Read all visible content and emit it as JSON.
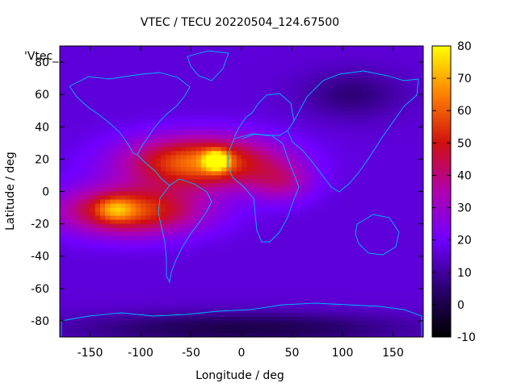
{
  "chart_data": {
    "type": "heatmap",
    "title": "VTEC / TECU 20220504_124.67500",
    "xlabel": "Longitude / deg",
    "ylabel": "Latitude / deg",
    "overlay_label": "'Vtec_",
    "xlim": [
      -180,
      180
    ],
    "ylim": [
      -90,
      90
    ],
    "x_ticks": [
      -150,
      -100,
      -50,
      0,
      50,
      100,
      150
    ],
    "y_ticks": [
      -80,
      -60,
      -40,
      -20,
      0,
      20,
      40,
      60,
      80
    ],
    "colorbar": {
      "range": [
        -10,
        80
      ],
      "ticks": [
        -10,
        0,
        10,
        20,
        30,
        40,
        50,
        60,
        70,
        80
      ],
      "colors": [
        "#000000",
        "#2a0070",
        "#7000ff",
        "#b000b0",
        "#d01010",
        "#ff8000",
        "#ffff00"
      ]
    },
    "background_tecu": 16,
    "features": [
      {
        "name": "equatorial-anomaly-north",
        "lon": -40,
        "lat": 18,
        "peak_tecu": 48,
        "lon_halfwidth": 75,
        "lat_halfwidth": 16
      },
      {
        "name": "equatorial-anomaly-south",
        "lon": -110,
        "lat": -12,
        "peak_tecu": 42,
        "lon_halfwidth": 70,
        "lat_halfwidth": 15
      },
      {
        "name": "crest-hotspot-atlantic",
        "lon": -25,
        "lat": 19,
        "peak_tecu": 40,
        "lon_halfwidth": 12,
        "lat_halfwidth": 6
      },
      {
        "name": "crest-hotspot-pacific",
        "lon": -125,
        "lat": -11,
        "peak_tecu": 18,
        "lon_halfwidth": 18,
        "lat_halfwidth": 7
      },
      {
        "name": "africa-extension",
        "lon": 40,
        "lat": 5,
        "peak_tecu": 16,
        "lon_halfwidth": 30,
        "lat_halfwidth": 12
      },
      {
        "name": "asia-depletion",
        "lon": 110,
        "lat": 60,
        "peak_tecu": -10,
        "lon_halfwidth": 50,
        "lat_halfwidth": 15
      },
      {
        "name": "antarctic-depletion",
        "lon": 0,
        "lat": -85,
        "peak_tecu": -16,
        "lon_halfwidth": 160,
        "lat_halfwidth": 10
      }
    ]
  }
}
